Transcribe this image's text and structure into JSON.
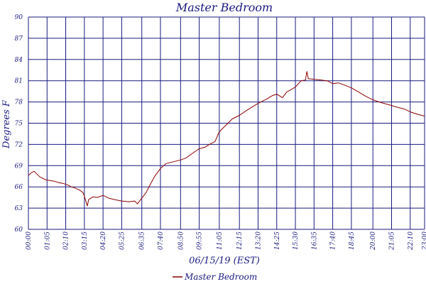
{
  "chart_data": {
    "type": "line",
    "title": "Master Bedroom",
    "xlabel": "06/15/19 (EST)",
    "ylabel": "Degrees F",
    "x_unit": "time",
    "xlim": [
      "00:00",
      "23:00"
    ],
    "ylim": [
      60,
      90
    ],
    "y_ticks": [
      "60",
      "63",
      "66",
      "69",
      "72",
      "75",
      "78",
      "81",
      "84",
      "87",
      "90"
    ],
    "x_ticks": [
      "00:00",
      "01:05",
      "02:10",
      "03:15",
      "04:20",
      "05:25",
      "06:35",
      "07:40",
      "08:50",
      "09:55",
      "11:05",
      "12:15",
      "13:20",
      "14:25",
      "15:30",
      "16:35",
      "17:40",
      "18:45",
      "20:00",
      "21:05",
      "22:10",
      "23:00"
    ],
    "grid": true,
    "legend_position": "bottom-center",
    "colors": {
      "series": "#8b0000",
      "grid": "#1a1a80",
      "text": "#1a1a80"
    },
    "series": [
      {
        "name": "Master Bedroom",
        "points": [
          [
            "00:00",
            67.6
          ],
          [
            "00:10",
            68.0
          ],
          [
            "00:20",
            68.2
          ],
          [
            "00:30",
            67.8
          ],
          [
            "00:40",
            67.4
          ],
          [
            "00:50",
            67.2
          ],
          [
            "01:00",
            67.0
          ],
          [
            "01:15",
            66.9
          ],
          [
            "01:30",
            66.8
          ],
          [
            "01:45",
            66.6
          ],
          [
            "02:00",
            66.5
          ],
          [
            "02:15",
            66.3
          ],
          [
            "02:30",
            66.0
          ],
          [
            "02:45",
            65.8
          ],
          [
            "03:00",
            65.5
          ],
          [
            "03:10",
            65.2
          ],
          [
            "03:15",
            64.7
          ],
          [
            "03:20",
            64.0
          ],
          [
            "03:25",
            63.3
          ],
          [
            "03:30",
            64.2
          ],
          [
            "03:45",
            64.6
          ],
          [
            "04:00",
            64.5
          ],
          [
            "04:20",
            64.8
          ],
          [
            "04:40",
            64.4
          ],
          [
            "05:00",
            64.2
          ],
          [
            "05:25",
            64.0
          ],
          [
            "05:50",
            63.9
          ],
          [
            "06:10",
            64.0
          ],
          [
            "06:20",
            63.6
          ],
          [
            "06:35",
            64.4
          ],
          [
            "06:50",
            65.2
          ],
          [
            "07:00",
            66.0
          ],
          [
            "07:20",
            67.5
          ],
          [
            "07:40",
            68.6
          ],
          [
            "08:00",
            69.3
          ],
          [
            "08:20",
            69.5
          ],
          [
            "08:50",
            69.8
          ],
          [
            "09:10",
            70.1
          ],
          [
            "09:30",
            70.7
          ],
          [
            "09:55",
            71.4
          ],
          [
            "10:15",
            71.6
          ],
          [
            "10:30",
            72.0
          ],
          [
            "10:50",
            72.4
          ],
          [
            "11:05",
            73.8
          ],
          [
            "11:30",
            74.8
          ],
          [
            "11:50",
            75.6
          ],
          [
            "12:15",
            76.1
          ],
          [
            "12:40",
            76.8
          ],
          [
            "13:00",
            77.3
          ],
          [
            "13:20",
            77.8
          ],
          [
            "13:50",
            78.4
          ],
          [
            "14:10",
            78.9
          ],
          [
            "14:25",
            79.1
          ],
          [
            "14:45",
            78.6
          ],
          [
            "15:00",
            79.4
          ],
          [
            "15:30",
            80.1
          ],
          [
            "15:50",
            81.0
          ],
          [
            "16:05",
            81.1
          ],
          [
            "16:10",
            82.3
          ],
          [
            "16:15",
            81.3
          ],
          [
            "16:35",
            81.2
          ],
          [
            "17:00",
            81.1
          ],
          [
            "17:20",
            81.0
          ],
          [
            "17:40",
            80.6
          ],
          [
            "18:00",
            80.7
          ],
          [
            "18:20",
            80.4
          ],
          [
            "18:45",
            80.0
          ],
          [
            "19:10",
            79.4
          ],
          [
            "19:35",
            78.8
          ],
          [
            "20:00",
            78.3
          ],
          [
            "20:30",
            77.9
          ],
          [
            "21:05",
            77.5
          ],
          [
            "21:30",
            77.2
          ],
          [
            "21:50",
            77.0
          ],
          [
            "22:10",
            76.6
          ],
          [
            "22:40",
            76.2
          ],
          [
            "23:00",
            76.0
          ]
        ]
      }
    ]
  }
}
